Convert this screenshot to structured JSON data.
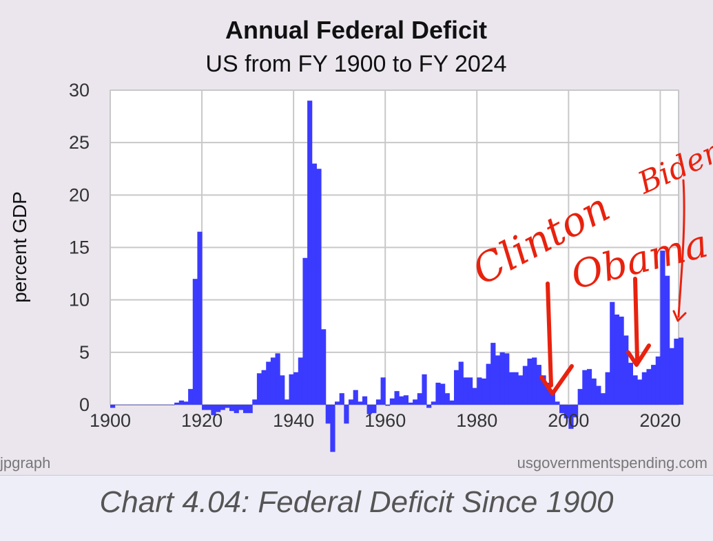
{
  "caption": "Chart 4.04: Federal Deficit Since 1900",
  "colors": {
    "bar_fill": "#3b3bff",
    "annotation": "#e8220e",
    "plot_bg": "#ffffff",
    "panel_bg": "#ebe6ee",
    "grid": "#c8c8c8"
  },
  "chart_data": {
    "type": "area",
    "title": "Annual Federal Deficit",
    "subtitle": "US from FY 1900 to FY 2024",
    "xlabel": "",
    "ylabel": "percent GDP",
    "xlim": [
      1900,
      2024
    ],
    "ylim": [
      0,
      30
    ],
    "x_ticks": [
      "1900",
      "1920",
      "1940",
      "1960",
      "1980",
      "2000",
      "2020"
    ],
    "y_ticks": [
      "0",
      "5",
      "10",
      "15",
      "20",
      "25",
      "30"
    ],
    "grid": true,
    "credit_left": "jpgraph",
    "credit_right": "usgovernmentspending.com",
    "series": [
      {
        "x": [
          1900,
          1901,
          1902,
          1903,
          1904,
          1905,
          1906,
          1907,
          1908,
          1909,
          1910,
          1911,
          1912,
          1913,
          1914,
          1915,
          1916,
          1917,
          1918,
          1919,
          1920,
          1921,
          1922,
          1923,
          1924,
          1925,
          1926,
          1927,
          1928,
          1929,
          1930,
          1931,
          1932,
          1933,
          1934,
          1935,
          1936,
          1937,
          1938,
          1939,
          1940,
          1941,
          1942,
          1943,
          1944,
          1945,
          1946,
          1947,
          1948,
          1949,
          1950,
          1951,
          1952,
          1953,
          1954,
          1955,
          1956,
          1957,
          1958,
          1959,
          1960,
          1961,
          1962,
          1963,
          1964,
          1965,
          1966,
          1967,
          1968,
          1969,
          1970,
          1971,
          1972,
          1973,
          1974,
          1975,
          1976,
          1977,
          1978,
          1979,
          1980,
          1981,
          1982,
          1983,
          1984,
          1985,
          1986,
          1987,
          1988,
          1989,
          1990,
          1991,
          1992,
          1993,
          1994,
          1995,
          1996,
          1997,
          1998,
          1999,
          2000,
          2001,
          2002,
          2003,
          2004,
          2005,
          2006,
          2007,
          2008,
          2009,
          2010,
          2011,
          2012,
          2013,
          2014,
          2015,
          2016,
          2017,
          2018,
          2019,
          2020,
          2021,
          2022,
          2023,
          2024
        ],
        "values": [
          -0.3,
          0,
          0,
          0,
          0,
          0,
          0,
          0,
          0,
          0,
          0,
          0,
          0,
          0,
          0.2,
          0.4,
          0.3,
          1.5,
          12,
          16.5,
          -0.5,
          -0.5,
          -1,
          -0.7,
          -0.5,
          -0.3,
          -0.6,
          -0.8,
          -0.5,
          -0.8,
          -0.8,
          0.5,
          3,
          3.3,
          4.1,
          4.5,
          4.9,
          2.8,
          0.5,
          2.9,
          3.1,
          4.5,
          14,
          29,
          23,
          22.5,
          7.2,
          -1.8,
          -4.5,
          0.3,
          1.1,
          -1.8,
          0.5,
          1.4,
          0.3,
          0.8,
          -0.9,
          -0.8,
          0.5,
          2.6,
          -0.1,
          0.6,
          1.3,
          0.8,
          0.9,
          0.2,
          0.5,
          1.1,
          2.9,
          -0.3,
          0.3,
          2.1,
          2,
          1.1,
          0.4,
          3.3,
          4.1,
          2.6,
          2.6,
          1.6,
          2.6,
          2.5,
          3.9,
          5.9,
          4.7,
          5,
          4.9,
          3.1,
          3.1,
          2.8,
          3.7,
          4.4,
          4.5,
          3.8,
          2.8,
          2.1,
          1.3,
          0.3,
          -0.8,
          -1.3,
          -2.3,
          -1.2,
          1.5,
          3.3,
          3.4,
          2.5,
          1.8,
          1.1,
          3.1,
          9.8,
          8.6,
          8.4,
          6.6,
          4,
          2.8,
          2.4,
          3.1,
          3.4,
          3.8,
          4.6,
          14.7,
          12.3,
          5.4,
          6.3,
          6.4
        ]
      }
    ],
    "annotations": [
      "Clinton",
      "Obama",
      "Biden"
    ]
  }
}
